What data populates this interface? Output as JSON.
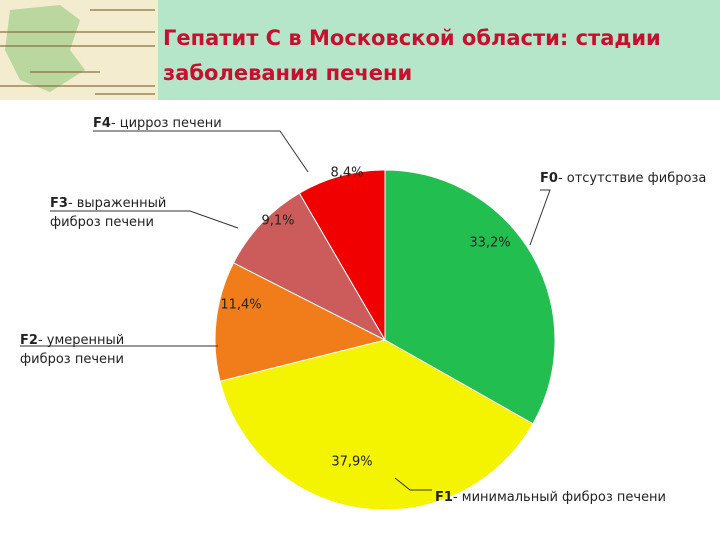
{
  "chart_data": {
    "type": "pie",
    "title": "Гепатит С в Московской области: стадии заболевания печени",
    "categories": [
      "F0",
      "F1",
      "F2",
      "F3",
      "F4"
    ],
    "descriptions": [
      [
        "- отсутствие фиброза"
      ],
      [
        "- минимальный фиброз печени"
      ],
      [
        "- умеренный",
        "фиброз печени"
      ],
      [
        "- выраженный",
        "фиброз печени"
      ],
      [
        "- цирроз печени"
      ]
    ],
    "values": [
      33.2,
      37.9,
      11.4,
      9.1,
      8.4
    ],
    "value_labels": [
      "33,2%",
      "37,9%",
      "11,4%",
      "9,1%",
      "8,4%"
    ],
    "colors": [
      "#22bf50",
      "#f4f400",
      "#f07d1a",
      "#cc5c5c",
      "#f00000"
    ]
  }
}
